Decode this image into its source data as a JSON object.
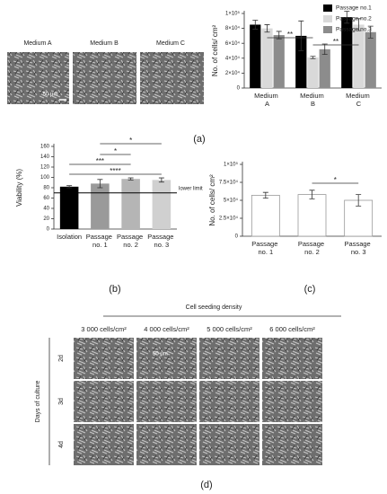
{
  "panel_a": {
    "media": [
      "Medium A",
      "Medium B",
      "Medium C"
    ],
    "scale_bar": "50 μm",
    "label": "(a)"
  },
  "chart_data": [
    {
      "type": "bar",
      "ylabel": "No. of cells/ cm²",
      "categories": [
        "Medium\nA",
        "Medium\nB",
        "Medium\nC"
      ],
      "series": [
        {
          "name": "Passage no.1",
          "color": "#000000",
          "values": [
            85000,
            70000,
            95000
          ],
          "errors": [
            6000,
            20000,
            8000
          ]
        },
        {
          "name": "Passage no.2",
          "color": "#d9d9d9",
          "values": [
            80000,
            41000,
            85000
          ],
          "errors": [
            5000,
            1500,
            8000
          ]
        },
        {
          "name": "Passage no.3",
          "color": "#8c8c8c",
          "values": [
            71000,
            52000,
            75000
          ],
          "errors": [
            5000,
            7000,
            8000
          ]
        }
      ],
      "ylim": [
        0,
        100000
      ],
      "yticks": [
        0,
        {
          "value": 20000,
          "label": "2×10⁴"
        },
        {
          "value": 40000,
          "label": "4×10⁴"
        },
        {
          "value": 60000,
          "label": "6×10⁴"
        },
        {
          "value": 80000,
          "label": "8×10⁴"
        },
        {
          "value": 100000,
          "label": "1×10⁵"
        }
      ],
      "significance": [
        "**",
        "**"
      ],
      "legend": "top-right"
    },
    {
      "type": "bar",
      "ylabel": "Viability (%)",
      "panel": "(b)",
      "categories": [
        "Isolation",
        "Passage\nno. 1",
        "Passage\nno. 2",
        "Passage\nno. 3"
      ],
      "values": [
        82,
        88,
        97,
        95
      ],
      "errors": [
        2,
        8,
        2,
        4
      ],
      "colors": [
        "#000000",
        "#9a9a9a",
        "#b5b5b5",
        "#d0d0d0"
      ],
      "ylim": [
        0,
        160
      ],
      "yticks": [
        0,
        20,
        40,
        60,
        80,
        100,
        120,
        140,
        160
      ],
      "reference_line": {
        "value": 70,
        "label": "lower limit"
      },
      "significance": [
        "*",
        "*",
        "***",
        "****"
      ]
    },
    {
      "type": "bar",
      "ylabel": "No. of cells/ cm²",
      "panel": "(c)",
      "categories": [
        "Passage\nno. 1",
        "Passage\nno. 2",
        "Passage\nno. 3"
      ],
      "values": [
        57000,
        58000,
        50000
      ],
      "errors": [
        4000,
        6000,
        8000
      ],
      "color": "#ffffff",
      "ylim": [
        0,
        100000
      ],
      "yticks": [
        0,
        {
          "value": 25000,
          "label": "2.5×10⁴"
        },
        {
          "value": 50000,
          "label": "5×10⁴"
        },
        {
          "value": 75000,
          "label": "7.5×10⁴"
        },
        {
          "value": 100000,
          "label": "1×10⁵"
        }
      ],
      "significance": [
        "*"
      ]
    }
  ],
  "panel_d": {
    "title": "Cell seeding density",
    "columns": [
      "3 000 cells/cm²",
      "4 000 cells/cm²",
      "5 000 cells/cm²",
      "6 000 cells/cm²"
    ],
    "row_title": "Days of culture",
    "rows": [
      "2d",
      "3d",
      "4d"
    ],
    "scale_bar": "50 μm",
    "label": "(d)"
  }
}
